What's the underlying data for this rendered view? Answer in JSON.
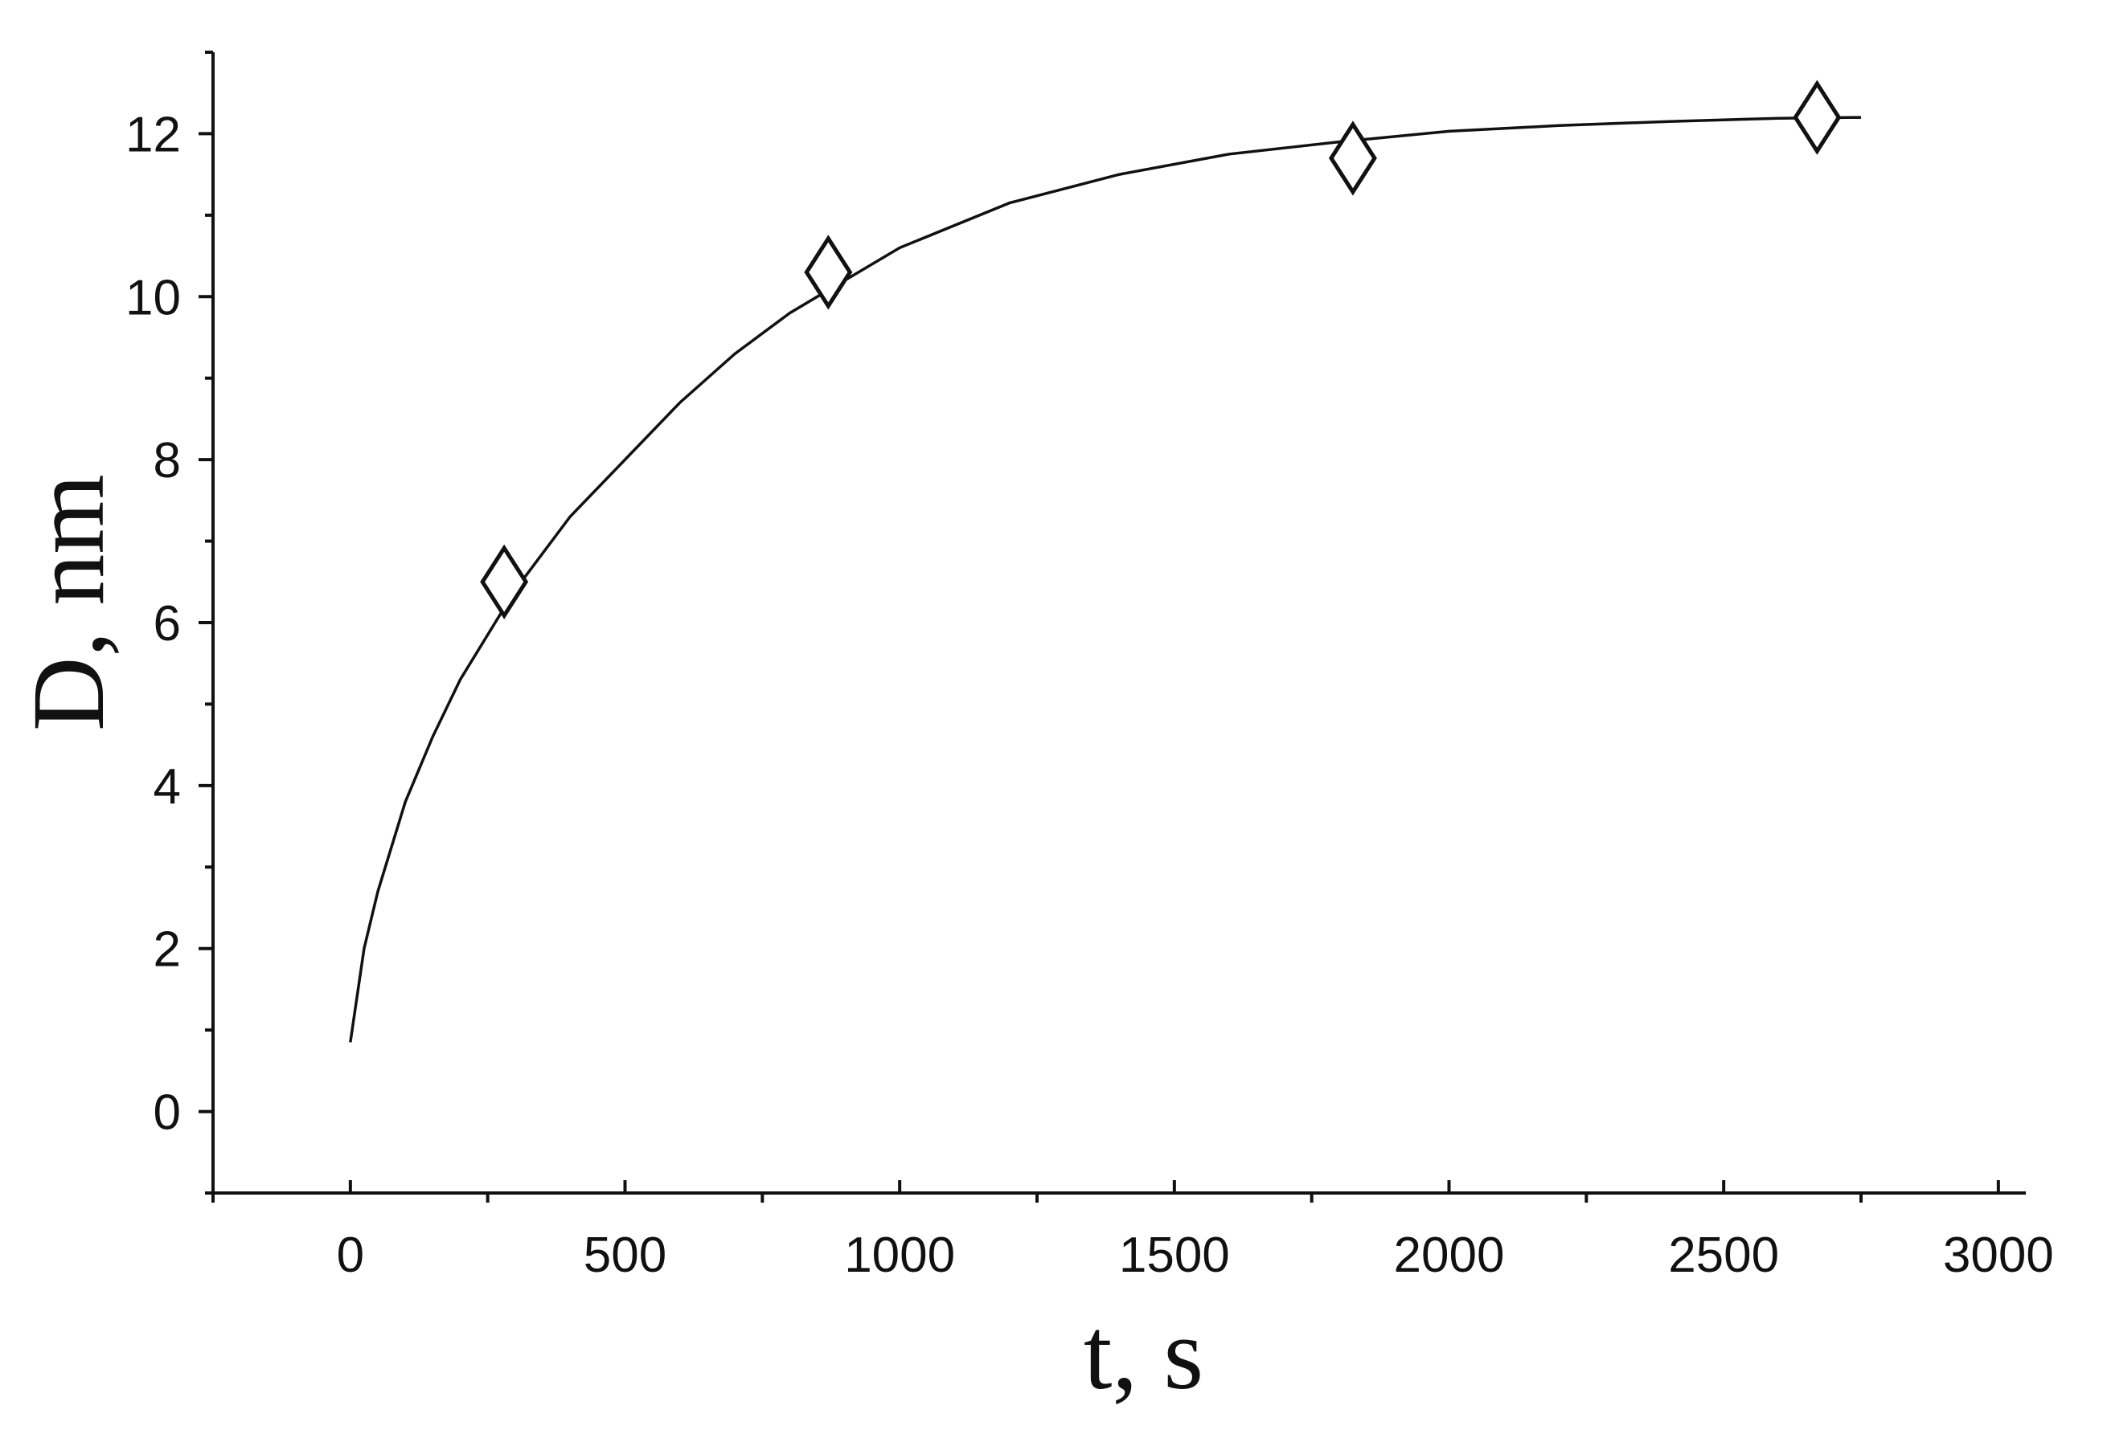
{
  "chart_data": {
    "type": "scatter",
    "xlabel": "t, s",
    "ylabel": "D, nm",
    "xlim": [
      -250,
      3050
    ],
    "ylim": [
      -1,
      13
    ],
    "x_ticks": [
      0,
      500,
      1000,
      1500,
      2000,
      2500,
      3000
    ],
    "x_tick_labels": [
      "0",
      "500",
      "1000",
      "1500",
      "2000",
      "2500",
      "3000"
    ],
    "y_ticks": [
      0,
      2,
      4,
      6,
      8,
      10,
      12
    ],
    "y_tick_labels": [
      "0",
      "2",
      "4",
      "6",
      "8",
      "10",
      "12"
    ],
    "grid": false,
    "series": [
      {
        "marker": "diamond",
        "x": [
          280,
          870,
          1825,
          2670
        ],
        "y": [
          6.5,
          10.3,
          11.7,
          12.2
        ]
      },
      {
        "style": "line",
        "x": [
          0,
          25,
          50,
          100,
          150,
          200,
          300,
          400,
          500,
          600,
          700,
          800,
          900,
          1000,
          1200,
          1400,
          1600,
          1800,
          2000,
          2200,
          2400,
          2600,
          2750
        ],
        "y": [
          0.85,
          2.0,
          2.7,
          3.8,
          4.6,
          5.3,
          6.4,
          7.3,
          8.0,
          8.7,
          9.3,
          9.8,
          10.2,
          10.6,
          11.15,
          11.5,
          11.75,
          11.9,
          12.03,
          12.1,
          12.15,
          12.19,
          12.2
        ]
      }
    ]
  }
}
